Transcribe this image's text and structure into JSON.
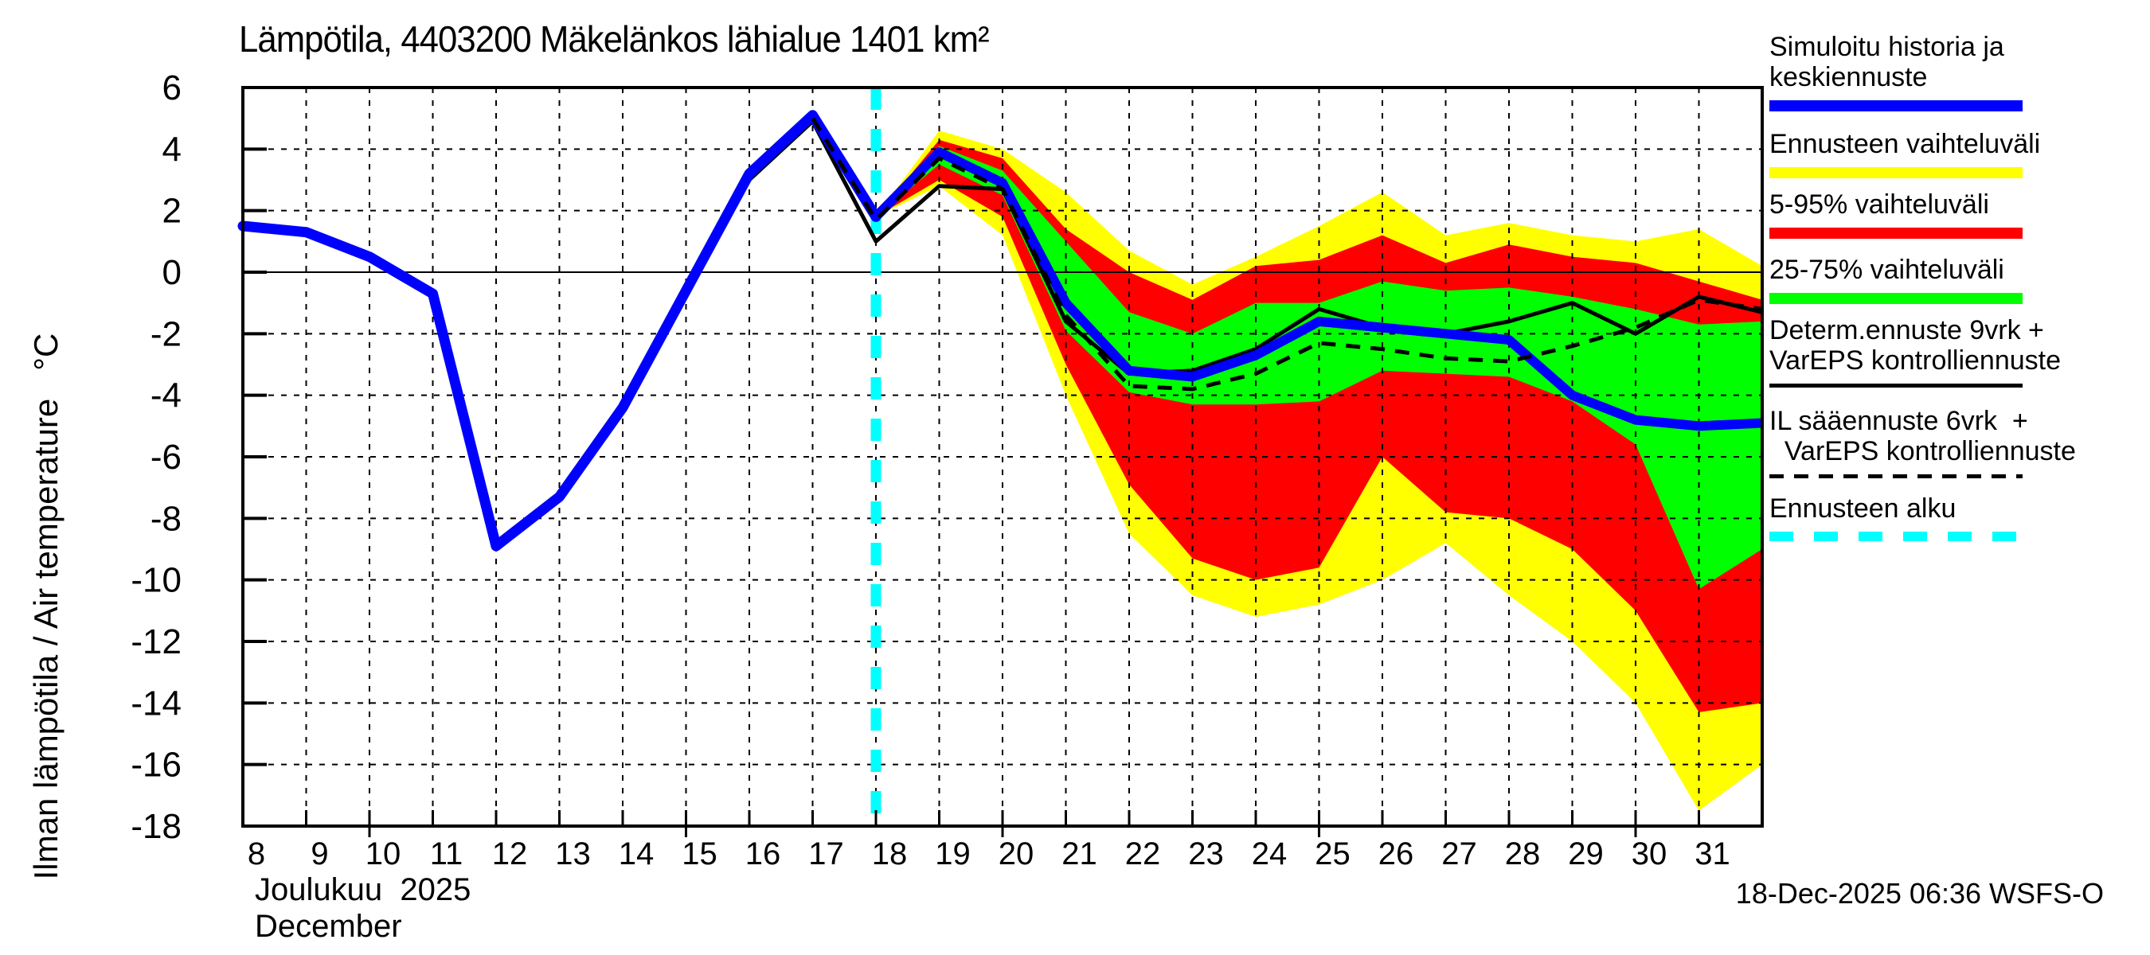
{
  "title": "Lämpötila, 4403200 Mäkelänkos lähialue 1401 km²",
  "footer": {
    "timestamp": "18-Dec-2025 06:36 WSFS-O"
  },
  "colors": {
    "history_mean": "#0000ff",
    "range_minmax": "#ffff00",
    "range_5_95": "#ff0000",
    "range_25_75": "#00ff00",
    "determ_line": "#000000",
    "il_line": "#000000",
    "forecast_start": "#00ffff",
    "grid": "#000000"
  },
  "legend": {
    "items": [
      {
        "line1": "Simuloitu historia ja",
        "line2": "keskiennuste",
        "color": "#0000ff",
        "style": "solid-thick"
      },
      {
        "line1": "Ennusteen vaihteluväli",
        "line2": "",
        "color": "#ffff00",
        "style": "solid-thick"
      },
      {
        "line1": "5-95% vaihteluväli",
        "line2": "",
        "color": "#ff0000",
        "style": "solid-thick"
      },
      {
        "line1": "25-75% vaihteluväli",
        "line2": "",
        "color": "#00ff00",
        "style": "solid-thick"
      },
      {
        "line1": "Determ.ennuste 9vrk +",
        "line2": "VarEPS kontrolliennuste",
        "color": "#000000",
        "style": "line-thin"
      },
      {
        "line1": "IL sääennuste 6vrk  +",
        "line2": "  VarEPS kontrolliennuste",
        "color": "#000000",
        "style": "dashed-thin"
      },
      {
        "line1": "Ennusteen alku",
        "line2": "",
        "color": "#00ffff",
        "style": "dashed-thick"
      }
    ]
  },
  "chart_data": {
    "type": "line",
    "title": "Lämpötila, 4403200 Mäkelänkos lähialue 1401 km²",
    "ylabel": "Ilman lämpötila / Air temperature   °C",
    "xlabel_fi": "Joulukuu  2025",
    "xlabel_en": "December",
    "xlim": [
      8,
      32
    ],
    "ylim": [
      -18,
      6
    ],
    "x_ticks": [
      8,
      9,
      10,
      11,
      12,
      13,
      14,
      15,
      16,
      17,
      18,
      19,
      20,
      21,
      22,
      23,
      24,
      25,
      26,
      27,
      28,
      29,
      30,
      31
    ],
    "y_ticks": [
      6,
      4,
      2,
      0,
      -2,
      -4,
      -6,
      -8,
      -10,
      -12,
      -14,
      -16,
      -18
    ],
    "grid": "dashed",
    "zero_line": true,
    "legend_position": "right",
    "forecast_start_x": 18,
    "series": [
      {
        "name": "Simuloitu historia ja keskiennuste (historia)",
        "x": [
          8,
          9,
          10,
          11,
          12,
          13,
          14,
          15,
          16,
          17,
          18
        ],
        "values": [
          1.5,
          1.3,
          0.5,
          -0.7,
          -8.9,
          -7.3,
          -4.4,
          -0.6,
          3.2,
          5.1,
          1.8
        ]
      },
      {
        "name": "Keskiennuste",
        "x": [
          18,
          19,
          20,
          21,
          22,
          23,
          24,
          25,
          26,
          27,
          28,
          29,
          30,
          31,
          32
        ],
        "values": [
          1.8,
          3.9,
          2.9,
          -1.0,
          -3.2,
          -3.4,
          -2.7,
          -1.6,
          -1.8,
          -2.0,
          -2.2,
          -4.0,
          -4.8,
          -5.0,
          -4.9
        ]
      },
      {
        "name": "Determ.ennuste 9vrk + VarEPS kontrolliennuste",
        "x": [
          16,
          17,
          18,
          19,
          20,
          21,
          22,
          23,
          24,
          25,
          26,
          27,
          28,
          29,
          30,
          31,
          32
        ],
        "values": [
          3.0,
          4.9,
          1.0,
          2.8,
          2.7,
          -1.6,
          -3.3,
          -3.2,
          -2.5,
          -1.2,
          -1.8,
          -2.0,
          -1.6,
          -1.0,
          -2.0,
          -0.8,
          -1.3
        ]
      },
      {
        "name": "IL sääennuste 6vrk + VarEPS kontrolliennuste",
        "x": [
          17,
          18,
          19,
          20,
          21,
          22,
          23,
          24,
          25,
          26,
          27,
          28,
          29,
          30,
          31,
          32
        ],
        "values": [
          5.0,
          1.7,
          3.7,
          2.7,
          -1.4,
          -3.7,
          -3.8,
          -3.3,
          -2.3,
          -2.5,
          -2.8,
          -2.9,
          -2.4,
          -1.8,
          -0.9,
          -1.2
        ]
      }
    ],
    "bands": {
      "x": [
        18,
        19,
        20,
        21,
        22,
        23,
        24,
        25,
        26,
        27,
        28,
        29,
        30,
        31,
        32
      ],
      "minmax": {
        "label": "Ennusteen vaihteluväli",
        "top": [
          1.8,
          4.6,
          4.0,
          2.6,
          0.7,
          -0.4,
          0.5,
          1.5,
          2.6,
          1.2,
          1.6,
          1.2,
          1.0,
          1.4,
          0.2
        ],
        "bottom": [
          1.8,
          2.8,
          1.2,
          -4.0,
          -8.5,
          -10.5,
          -11.2,
          -10.8,
          -10.0,
          -8.8,
          -10.5,
          -12.0,
          -14.0,
          -17.5,
          -16.0
        ]
      },
      "p5_95": {
        "label": "5-95% vaihteluväli",
        "top": [
          1.8,
          4.3,
          3.7,
          1.4,
          0.0,
          -0.9,
          0.2,
          0.4,
          1.2,
          0.3,
          0.9,
          0.5,
          0.3,
          -0.3,
          -0.9
        ],
        "bottom": [
          1.8,
          3.0,
          1.8,
          -3.0,
          -6.9,
          -9.3,
          -10.0,
          -9.6,
          -6.0,
          -7.8,
          -8.0,
          -9.0,
          -11.0,
          -14.3,
          -14.0
        ]
      },
      "p25_75": {
        "label": "25-75% vaihteluväli",
        "top": [
          1.8,
          4.1,
          3.3,
          1.0,
          -1.3,
          -2.0,
          -1.0,
          -1.0,
          -0.3,
          -0.6,
          -0.5,
          -0.8,
          -1.2,
          -1.7,
          -1.6
        ],
        "bottom": [
          1.8,
          3.5,
          2.5,
          -1.9,
          -3.9,
          -4.3,
          -4.3,
          -4.2,
          -3.2,
          -3.3,
          -3.4,
          -4.2,
          -5.6,
          -10.3,
          -9.0
        ]
      }
    }
  }
}
